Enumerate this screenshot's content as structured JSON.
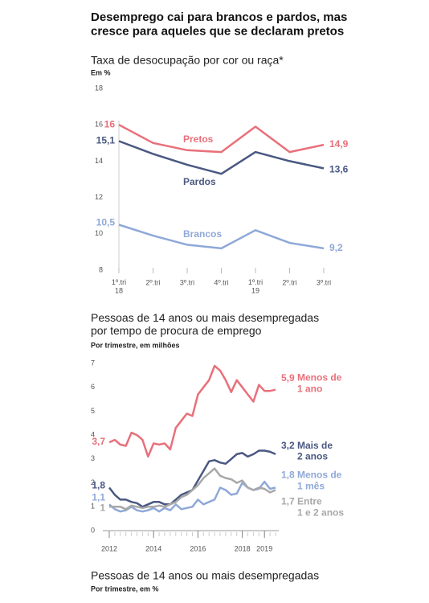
{
  "title": "Desemprego cai para brancos e pardos, mas\ncresce para aqueles que se declaram pretos",
  "chart_data": [
    {
      "type": "line",
      "title": "Taxa de desocupação por cor ou raça*",
      "subtitle": "Em %",
      "categories": [
        "1º.tri\n18",
        "2º.tri",
        "3º.tri",
        "4º.tri",
        "1º.tri\n19",
        "2º.tri",
        "3º.tri"
      ],
      "ylim": [
        8,
        18
      ],
      "yticks": [
        8,
        10,
        12,
        14,
        16,
        18
      ],
      "grid": false,
      "series": [
        {
          "name": "Pretos",
          "color": "#e8707a",
          "values": [
            16,
            15,
            14.6,
            14.5,
            15.9,
            14.5,
            14.9
          ],
          "value_labels": [
            "16",
            null,
            null,
            null,
            null,
            null,
            "14,9"
          ]
        },
        {
          "name": "Pardos",
          "color": "#4a5882",
          "values": [
            15.1,
            14.4,
            13.8,
            13.3,
            14.5,
            14,
            13.6
          ],
          "value_labels": [
            "15,1",
            null,
            null,
            null,
            null,
            null,
            "13,6"
          ]
        },
        {
          "name": "Brancos",
          "color": "#8fa8d8",
          "values": [
            10.5,
            9.9,
            9.4,
            9.2,
            10.2,
            9.5,
            9.2
          ],
          "value_labels": [
            "10,5",
            null,
            null,
            null,
            null,
            null,
            "9,2"
          ]
        }
      ]
    },
    {
      "type": "line",
      "title": "Pessoas de 14 anos ou mais desempregadas\npor tempo de procura de emprego",
      "subtitle": "Por trimestre, em milhões",
      "x": [
        2012,
        2012.25,
        2012.5,
        2012.75,
        2013,
        2013.25,
        2013.5,
        2013.75,
        2014,
        2014.25,
        2014.5,
        2014.75,
        2015,
        2015.25,
        2015.5,
        2015.75,
        2016,
        2016.25,
        2016.5,
        2016.75,
        2017,
        2017.25,
        2017.5,
        2017.75,
        2018,
        2018.25,
        2018.5,
        2018.75,
        2019,
        2019.25,
        2019.5
      ],
      "xlim": [
        2012,
        2019.5
      ],
      "xticks": [
        2012,
        2014,
        2016,
        2018,
        2019
      ],
      "ylim": [
        0,
        7
      ],
      "yticks": [
        0,
        1,
        2,
        3,
        4,
        5,
        6,
        7
      ],
      "grid": false,
      "series": [
        {
          "name": "Menos de\n1 ano",
          "color": "#e8707a",
          "values": [
            3.7,
            3.8,
            3.6,
            3.55,
            4.1,
            4.0,
            3.8,
            3.1,
            3.65,
            3.6,
            3.65,
            3.4,
            4.3,
            4.6,
            4.9,
            4.8,
            5.7,
            6.0,
            6.3,
            6.9,
            6.7,
            6.3,
            5.8,
            6.3,
            6.0,
            5.7,
            5.4,
            6.1,
            5.85,
            5.85,
            5.9
          ],
          "value_labels": [
            "3,7",
            null,
            null,
            null,
            null,
            null,
            null,
            null,
            null,
            null,
            null,
            null,
            null,
            null,
            null,
            null,
            null,
            null,
            null,
            null,
            null,
            null,
            null,
            null,
            null,
            null,
            null,
            null,
            null,
            null,
            "5,9"
          ]
        },
        {
          "name": "Mais de\n2 anos",
          "color": "#4a5882",
          "values": [
            1.8,
            1.5,
            1.3,
            1.3,
            1.2,
            1.15,
            1.0,
            1.1,
            1.2,
            1.2,
            1.1,
            1.1,
            1.3,
            1.5,
            1.6,
            1.7,
            2.1,
            2.5,
            2.9,
            2.95,
            2.85,
            2.8,
            3.0,
            3.2,
            3.25,
            3.1,
            3.2,
            3.35,
            3.35,
            3.3,
            3.2
          ],
          "value_labels": [
            "1,8",
            null,
            null,
            null,
            null,
            null,
            null,
            null,
            null,
            null,
            null,
            null,
            null,
            null,
            null,
            null,
            null,
            null,
            null,
            null,
            null,
            null,
            null,
            null,
            null,
            null,
            null,
            null,
            null,
            null,
            "3,2"
          ]
        },
        {
          "name": "Menos de\n1 mês",
          "color": "#8fa8d8",
          "values": [
            1.1,
            0.9,
            0.8,
            0.85,
            1.0,
            0.85,
            0.8,
            0.85,
            0.95,
            0.8,
            0.95,
            0.85,
            1.1,
            0.9,
            0.95,
            1.0,
            1.3,
            1.1,
            1.2,
            1.3,
            1.8,
            1.7,
            1.5,
            1.55,
            2.0,
            1.8,
            1.7,
            1.75,
            2.05,
            1.75,
            1.8
          ],
          "value_labels": [
            "1,1",
            null,
            null,
            null,
            null,
            null,
            null,
            null,
            null,
            null,
            null,
            null,
            null,
            null,
            null,
            null,
            null,
            null,
            null,
            null,
            null,
            null,
            null,
            null,
            null,
            null,
            null,
            null,
            null,
            null,
            "1,8"
          ]
        },
        {
          "name": "Entre\n1 e 2 anos",
          "color": "#a8a8a8",
          "values": [
            1.0,
            1.0,
            1.0,
            0.9,
            1.05,
            1.0,
            0.95,
            1.0,
            1.0,
            1.05,
            1.0,
            1.1,
            1.2,
            1.4,
            1.5,
            1.7,
            1.9,
            2.2,
            2.4,
            2.6,
            2.3,
            2.2,
            2.15,
            2.0,
            2.1,
            1.8,
            1.7,
            1.8,
            1.75,
            1.6,
            1.7
          ],
          "value_labels": [
            "1",
            null,
            null,
            null,
            null,
            null,
            null,
            null,
            null,
            null,
            null,
            null,
            null,
            null,
            null,
            null,
            null,
            null,
            null,
            null,
            null,
            null,
            null,
            null,
            null,
            null,
            null,
            null,
            null,
            null,
            "1,7"
          ]
        }
      ]
    }
  ],
  "section3": {
    "title": "Pessoas de 14 anos ou mais desempregadas",
    "subtitle": "Por trimestre, em %"
  }
}
